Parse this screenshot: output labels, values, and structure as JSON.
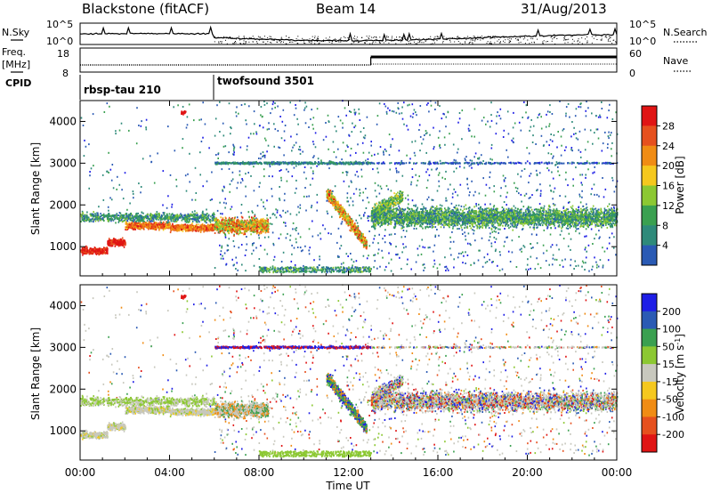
{
  "header": {
    "title": "Blackstone (fitACF)",
    "beam": "Beam 14",
    "date": "31/Aug/2013"
  },
  "noise_panel": {
    "left_label": "N.Sky",
    "right_label": "N.Search",
    "left_ticks": [
      "10^5",
      "10^0"
    ],
    "right_ticks": [
      "10^5",
      "10^0"
    ]
  },
  "freq_panel": {
    "left_label_1": "Freq.",
    "left_label_2": "[MHz]",
    "right_label": "Nave",
    "left_ticks": [
      "18",
      "8"
    ],
    "right_ticks": [
      "60",
      "0"
    ]
  },
  "cpid": {
    "label": "CPID",
    "segments": [
      {
        "name": "rbsp-tau 210",
        "start_hour": 0
      },
      {
        "name": "twofsound 3501",
        "start_hour": 6
      }
    ]
  },
  "colors": {
    "power_scale": [
      "#1e1ee6",
      "#2a5ab4",
      "#2e8a7a",
      "#3aa050",
      "#8cc832",
      "#f5c81e",
      "#f08c14",
      "#e6501e",
      "#e01414"
    ],
    "velocity_scale": [
      "#1e1ee6",
      "#2a5ab4",
      "#3aa050",
      "#8cc832",
      "#c8c8be",
      "#f5c81e",
      "#f08c14",
      "#e6501e",
      "#e01414"
    ]
  },
  "chart_data": [
    {
      "type": "heatmap",
      "title": "Power",
      "xlabel": "",
      "ylabel": "Slant Range [km]",
      "xlim_hours": [
        0,
        24
      ],
      "ylim_km": [
        300,
        4500
      ],
      "y_ticks": [
        "1000",
        "2000",
        "3000",
        "4000"
      ],
      "colorbar": {
        "label": "Power [dB]",
        "tick_labels": [
          "4",
          "8",
          "12",
          "16",
          "20",
          "24",
          "28"
        ],
        "range": [
          0,
          32
        ]
      }
    },
    {
      "type": "heatmap",
      "title": "Velocity",
      "xlabel": "Time UT",
      "ylabel": "Slant Range [km]",
      "xlim_hours": [
        0,
        24
      ],
      "ylim_km": [
        300,
        4500
      ],
      "x_ticks": [
        "00:00",
        "04:00",
        "08:00",
        "12:00",
        "16:00",
        "20:00",
        "00:00"
      ],
      "y_ticks": [
        "1000",
        "2000",
        "3000",
        "4000"
      ],
      "colorbar": {
        "label": "Velocity [m s",
        "label_sup": "-1",
        "label_end": "]",
        "tick_labels": [
          "200",
          "100",
          "50",
          "15",
          "-15",
          "-50",
          "-100",
          "-200"
        ],
        "range": [
          -250,
          250
        ]
      }
    }
  ]
}
